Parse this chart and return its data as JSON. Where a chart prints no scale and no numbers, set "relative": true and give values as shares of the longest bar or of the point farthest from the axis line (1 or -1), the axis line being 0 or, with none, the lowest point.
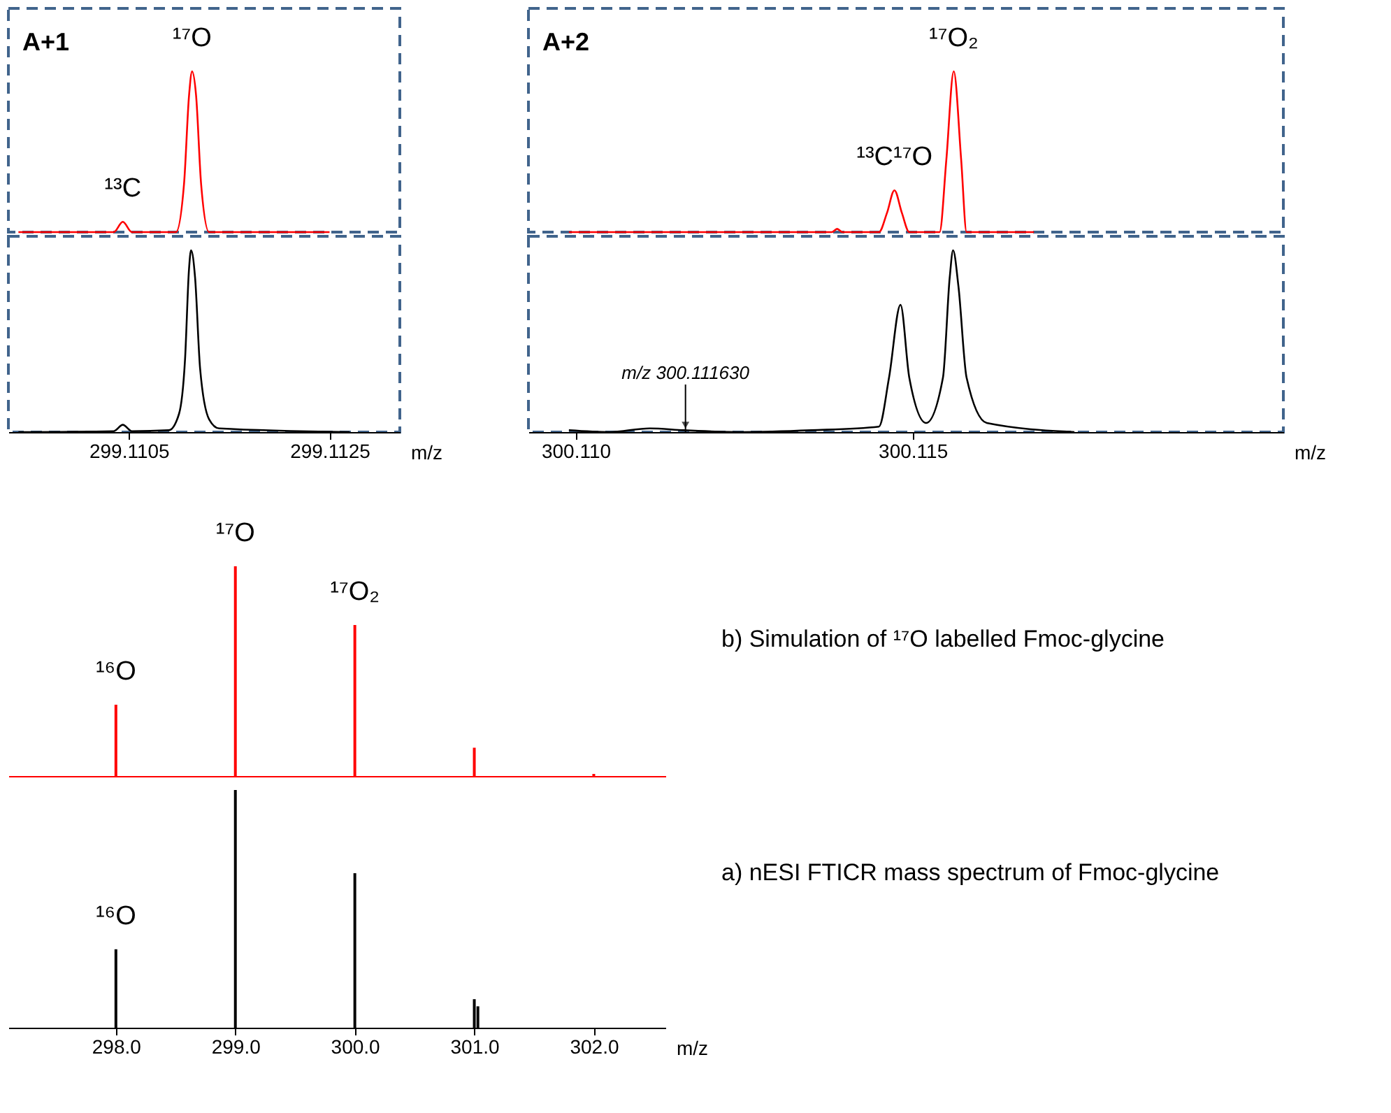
{
  "chart_data": [
    {
      "type": "line",
      "title": "A+1",
      "relative": true,
      "tick_labels": false,
      "xlim": [
        299.1093,
        299.1132
      ],
      "series": [
        {
          "color": "#ff0000",
          "x": [
            299.1094,
            299.11035,
            299.11044,
            299.11053,
            299.11097,
            299.11105,
            299.1111,
            299.11113,
            299.11117,
            299.11122,
            299.1113,
            299.1125
          ],
          "values": [
            0,
            0,
            0.064,
            0,
            0,
            0.3,
            0.85,
            1,
            0.85,
            0.3,
            0,
            0
          ]
        }
      ],
      "annotations": [
        {
          "text": "¹³C",
          "x": 299.11044,
          "y": 0.064
        },
        {
          "text": "¹⁷O",
          "x": 299.11113,
          "y": 1
        }
      ]
    },
    {
      "type": "line",
      "relative": true,
      "xlabel": "m/z",
      "xlim": [
        299.1093,
        299.1132
      ],
      "xticks": [
        299.1105,
        299.1125
      ],
      "series": [
        {
          "color": "#000000",
          "x": [
            299.1094,
            299.11035,
            299.11044,
            299.11053,
            299.1109,
            299.111,
            299.11106,
            299.1111,
            299.11112,
            299.11116,
            299.11121,
            299.1113,
            299.1114,
            299.1127
          ],
          "values": [
            0,
            0.005,
            0.04,
            0.005,
            0.01,
            0.1,
            0.4,
            0.9,
            1,
            0.85,
            0.35,
            0.07,
            0.02,
            0
          ]
        }
      ]
    },
    {
      "type": "line",
      "title": "A+2",
      "relative": true,
      "tick_labels": false,
      "xlim": [
        300.1093,
        300.1205
      ],
      "series": [
        {
          "color": "#ff0000",
          "x": [
            300.1099,
            300.1138,
            300.11388,
            300.11396,
            300.1145,
            300.11462,
            300.11473,
            300.11484,
            300.11495,
            300.1154,
            300.1155,
            300.11561,
            300.11572,
            300.1158,
            300.1168
          ],
          "values": [
            0,
            0,
            0.02,
            0,
            0,
            0.12,
            0.26,
            0.12,
            0,
            0,
            0.45,
            1,
            0.45,
            0,
            0
          ]
        }
      ],
      "annotations": [
        {
          "text": "¹³C¹⁷O",
          "x": 300.11473,
          "y": 0.26
        },
        {
          "text": "¹⁷O₂",
          "x": 300.11561,
          "y": 1
        }
      ]
    },
    {
      "type": "line",
      "relative": true,
      "xlabel": "m/z",
      "xlim": [
        300.1093,
        300.1205
      ],
      "xticks": [
        {
          "value": 300.11,
          "label": "300.110"
        },
        {
          "value": 300.115,
          "label": "300.115"
        }
      ],
      "series": [
        {
          "color": "#000000",
          "x": [
            300.1099,
            300.1105,
            300.1111,
            300.1116,
            300.1125,
            300.1135,
            300.1145,
            300.11465,
            300.11482,
            300.11495,
            300.1152,
            300.11545,
            300.11555,
            300.1156,
            300.11568,
            300.1158,
            300.1161,
            300.1174
          ],
          "values": [
            0.01,
            0,
            0.02,
            0.01,
            0,
            0.01,
            0.03,
            0.3,
            0.7,
            0.3,
            0.05,
            0.3,
            0.85,
            1,
            0.8,
            0.3,
            0.05,
            0
          ]
        }
      ],
      "annotations": [
        {
          "text": "m/z 300.111630",
          "x": 300.11163,
          "y": 0
        }
      ]
    },
    {
      "type": "bar",
      "relative": true,
      "tick_labels": false,
      "xlim": [
        297.1,
        302.6
      ],
      "series": [
        {
          "color": "#ff0000",
          "x": [
            298.0,
            299.0,
            300.0,
            301.0,
            302.0
          ],
          "values": [
            0.34,
            1,
            0.72,
            0.135,
            0.01
          ]
        }
      ],
      "annotations": [
        {
          "text": "¹⁶O",
          "x": 298.0,
          "y": 0.34
        },
        {
          "text": "¹⁷O",
          "x": 299.0,
          "y": 1
        },
        {
          "text": "¹⁷O₂",
          "x": 300.0,
          "y": 0.72
        },
        "b) Simulation of ¹⁷O labelled  Fmoc-glycine"
      ]
    },
    {
      "type": "bar",
      "relative": true,
      "xlabel": "m/z",
      "xlim": [
        297.1,
        302.6
      ],
      "xticks": [
        {
          "value": 298,
          "label": "298.0"
        },
        {
          "value": 299,
          "label": "299.0"
        },
        {
          "value": 300,
          "label": "300.0"
        },
        {
          "value": 301,
          "label": "301.0"
        },
        {
          "value": 302,
          "label": "302.0"
        }
      ],
      "series": [
        {
          "color": "#000000",
          "x": [
            298.0,
            299.0,
            300.0,
            301.0,
            301.03
          ],
          "values": [
            0.33,
            1,
            0.65,
            0.12,
            0.09
          ]
        }
      ],
      "annotations": [
        {
          "text": "¹⁶O",
          "x": 298.0,
          "y": 0.33
        },
        "a) nESI FTICR mass spectrum of Fmoc-glycine"
      ]
    }
  ]
}
